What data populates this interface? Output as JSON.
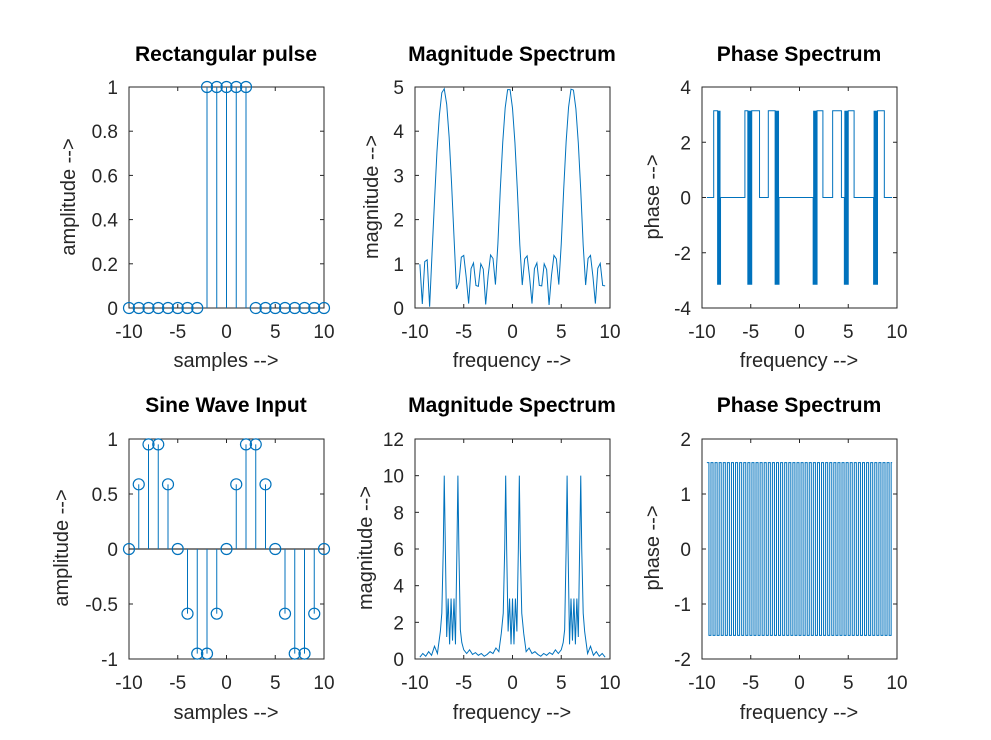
{
  "chart_data": [
    {
      "type": "stem",
      "title": "Rectangular pulse",
      "xlabel": "samples -->",
      "ylabel": "amplitude -->",
      "xlim": [
        -10,
        10
      ],
      "ylim": [
        0,
        1
      ],
      "xticks": [
        -10,
        -5,
        0,
        5,
        10
      ],
      "yticks": [
        0,
        0.2,
        0.4,
        0.6,
        0.8,
        1
      ],
      "x": [
        -10,
        -9,
        -8,
        -7,
        -6,
        -5,
        -4,
        -3,
        -2,
        -1,
        0,
        1,
        2,
        3,
        4,
        5,
        6,
        7,
        8,
        9,
        10
      ],
      "y": [
        0,
        0,
        0,
        0,
        0,
        0,
        0,
        0,
        1,
        1,
        1,
        1,
        1,
        0,
        0,
        0,
        0,
        0,
        0,
        0,
        0
      ],
      "color": "#0072bd",
      "grid": false
    },
    {
      "type": "line",
      "title": "Magnitude Spectrum",
      "xlabel": "frequency -->",
      "ylabel": "magnitude -->",
      "xlim": [
        -10,
        10
      ],
      "ylim": [
        0,
        5
      ],
      "xticks": [
        -10,
        -5,
        0,
        5,
        10
      ],
      "yticks": [
        0,
        1,
        2,
        3,
        4,
        5
      ],
      "x": [
        -9.5,
        -9.25,
        -9,
        -8.75,
        -8.5,
        -8.25,
        -8,
        -7.75,
        -7.5,
        -7.25,
        -7,
        -6.75,
        -6.5,
        -6.25,
        -6,
        -5.75,
        -5.5,
        -5.25,
        -5,
        -4.75,
        -4.5,
        -4.25,
        -4,
        -3.75,
        -3.5,
        -3.25,
        -3,
        -2.75,
        -2.5,
        -2.25,
        -2,
        -1.75,
        -1.5,
        -1.25,
        -1,
        -0.75,
        -0.5,
        -0.25,
        0,
        0.25,
        0.5,
        0.75,
        1,
        1.25,
        1.5,
        1.75,
        2,
        2.25,
        2.5,
        2.75,
        3,
        3.25,
        3.5,
        3.75,
        4,
        4.25,
        4.5,
        4.75,
        5,
        5.25,
        5.5,
        5.75,
        6,
        6.25,
        6.5,
        6.75,
        7,
        7.25,
        7.5,
        7.75,
        8,
        8.25,
        8.5,
        8.75,
        9,
        9.25,
        9.5
      ],
      "y": [
        0.99,
        0.09,
        1.05,
        1.09,
        0.03,
        1.25,
        2.42,
        3.53,
        4.36,
        4.87,
        4.96,
        4.61,
        3.87,
        2.82,
        1.61,
        0.43,
        0.57,
        1.15,
        1.19,
        0.7,
        0.1,
        0.89,
        1.02,
        0.51,
        0.49,
        1.0,
        0.88,
        0.08,
        0.73,
        1.2,
        1.12,
        0.53,
        1.45,
        2.69,
        3.75,
        4.53,
        4.94,
        4.94,
        4.52,
        3.74,
        2.66,
        1.43,
        0.52,
        1.11,
        1.18,
        0.7,
        0.1,
        0.89,
        1.02,
        0.51,
        0.5,
        1.0,
        0.87,
        0.07,
        0.74,
        1.19,
        1.11,
        0.53,
        1.45,
        2.68,
        3.76,
        4.54,
        4.95,
        4.93,
        4.51,
        3.73,
        2.66,
        1.42,
        0.52,
        1.12,
        1.19,
        0.71,
        0.1,
        0.9,
        1.01,
        0.51,
        0.5
      ],
      "color": "#0072bd",
      "grid": false
    },
    {
      "type": "line",
      "title": "Phase Spectrum",
      "xlabel": "frequency -->",
      "ylabel": "phase -->",
      "xlim": [
        -10,
        10
      ],
      "ylim": [
        -4,
        4
      ],
      "xticks": [
        -10,
        -5,
        0,
        5,
        10
      ],
      "yticks": [
        -4,
        -2,
        0,
        2,
        4
      ],
      "segments": [
        {
          "from": -9.5,
          "to": -8.8,
          "y": 0
        },
        {
          "from": -8.8,
          "to": -8.4,
          "y": 3.1416
        },
        {
          "from": -8.4,
          "to": -8.1,
          "y": -3.1416,
          "band": true
        },
        {
          "from": -8.1,
          "to": -5.6,
          "y": 0
        },
        {
          "from": -5.6,
          "to": -5.3,
          "y": 3.1416
        },
        {
          "from": -5.3,
          "to": -4.9,
          "y": -3.1416,
          "band": true
        },
        {
          "from": -4.9,
          "to": -4.1,
          "y": 3.1416
        },
        {
          "from": -4.1,
          "to": -3.2,
          "y": 0
        },
        {
          "from": -3.2,
          "to": -2.5,
          "y": 3.1416
        },
        {
          "from": -2.5,
          "to": -2.1,
          "y": -3.1416,
          "band": true
        },
        {
          "from": -2.1,
          "to": 1.4,
          "y": 0
        },
        {
          "from": 1.4,
          "to": 1.8,
          "y": -3.1416,
          "band": true
        },
        {
          "from": 1.8,
          "to": 2.4,
          "y": 3.1416
        },
        {
          "from": 2.4,
          "to": 3.4,
          "y": 0
        },
        {
          "from": 3.4,
          "to": 4.3,
          "y": 3.1416
        },
        {
          "from": 4.3,
          "to": 4.6,
          "y": 0
        },
        {
          "from": 4.6,
          "to": 5.0,
          "y": -3.1416,
          "band": true
        },
        {
          "from": 5.0,
          "to": 5.6,
          "y": 3.1416
        },
        {
          "from": 5.6,
          "to": 7.6,
          "y": 0
        },
        {
          "from": 7.6,
          "to": 8.0,
          "y": -3.1416,
          "band": true
        },
        {
          "from": 8.0,
          "to": 8.7,
          "y": 3.1416
        },
        {
          "from": 8.7,
          "to": 9.5,
          "y": 0
        }
      ],
      "color": "#0072bd",
      "grid": false
    },
    {
      "type": "stem",
      "title": "Sine Wave Input",
      "xlabel": "samples -->",
      "ylabel": "amplitude -->",
      "xlim": [
        -10,
        10
      ],
      "ylim": [
        -1,
        1
      ],
      "xticks": [
        -10,
        -5,
        0,
        5,
        10
      ],
      "yticks": [
        -1,
        -0.5,
        0,
        0.5,
        1
      ],
      "x": [
        -10,
        -9,
        -8,
        -7,
        -6,
        -5,
        -4,
        -3,
        -2,
        -1,
        0,
        1,
        2,
        3,
        4,
        5,
        6,
        7,
        8,
        9,
        10
      ],
      "y": [
        0,
        0.588,
        0.951,
        0.951,
        0.588,
        0,
        -0.588,
        -0.951,
        -0.951,
        -0.588,
        0,
        0.588,
        0.951,
        0.951,
        0.588,
        0,
        -0.588,
        -0.951,
        -0.951,
        -0.588,
        0
      ],
      "color": "#0072bd",
      "grid": false
    },
    {
      "type": "line",
      "title": "Magnitude Spectrum",
      "xlabel": "frequency -->",
      "ylabel": "magnitude -->",
      "xlim": [
        -10,
        10
      ],
      "ylim": [
        0,
        12
      ],
      "xticks": [
        -10,
        -5,
        0,
        5,
        10
      ],
      "yticks": [
        0,
        2,
        4,
        6,
        8,
        10,
        12
      ],
      "peaks": [
        -7.0,
        -5.6,
        -0.7,
        0.7,
        5.6,
        7.0
      ],
      "peak_value": 10,
      "x": [
        -9.5,
        -9.2,
        -8.9,
        -8.6,
        -8.3,
        -8.0,
        -7.7,
        -7.4,
        -7.25,
        -7.1,
        -7.0,
        -6.9,
        -6.75,
        -6.6,
        -6.45,
        -6.3,
        -6.15,
        -6.0,
        -5.85,
        -5.7,
        -5.6,
        -5.5,
        -5.35,
        -5.2,
        -5.0,
        -4.7,
        -4.4,
        -4.1,
        -3.8,
        -3.5,
        -3.2,
        -2.9,
        -2.6,
        -2.3,
        -2.0,
        -1.7,
        -1.4,
        -1.15,
        -0.95,
        -0.8,
        -0.7,
        -0.6,
        -0.45,
        -0.3,
        -0.15,
        0,
        0.15,
        0.3,
        0.45,
        0.6,
        0.7,
        0.8,
        0.95,
        1.15,
        1.4,
        1.7,
        2.0,
        2.3,
        2.6,
        2.9,
        3.2,
        3.5,
        3.8,
        4.1,
        4.4,
        4.7,
        5.0,
        5.2,
        5.35,
        5.5,
        5.6,
        5.7,
        5.85,
        6.0,
        6.15,
        6.3,
        6.45,
        6.6,
        6.75,
        6.9,
        7.0,
        7.1,
        7.25,
        7.4,
        7.7,
        8.0,
        8.3,
        8.6,
        8.9,
        9.2,
        9.5
      ],
      "y": [
        0.1,
        0.3,
        0.15,
        0.4,
        0.2,
        0.7,
        0.3,
        1.5,
        2.5,
        6.0,
        10.0,
        6.5,
        1.2,
        3.3,
        0.8,
        3.3,
        1.0,
        3.3,
        0.8,
        6.0,
        10.0,
        6.0,
        1.6,
        0.9,
        0.5,
        0.3,
        0.5,
        0.25,
        0.35,
        0.2,
        0.3,
        0.15,
        0.25,
        0.4,
        0.3,
        0.6,
        0.4,
        1.4,
        2.5,
        6.0,
        10.0,
        6.0,
        1.5,
        3.3,
        0.8,
        3.3,
        0.8,
        3.3,
        1.5,
        6.0,
        10.0,
        6.0,
        2.5,
        1.4,
        0.4,
        0.6,
        0.3,
        0.4,
        0.25,
        0.15,
        0.3,
        0.2,
        0.35,
        0.25,
        0.5,
        0.3,
        0.5,
        0.9,
        1.6,
        6.0,
        10.0,
        6.0,
        0.8,
        3.3,
        1.0,
        3.3,
        0.8,
        3.3,
        1.2,
        6.5,
        10.0,
        6.0,
        2.5,
        1.5,
        0.3,
        0.7,
        0.2,
        0.4,
        0.15,
        0.3,
        0.1
      ],
      "color": "#0072bd",
      "grid": false
    },
    {
      "type": "line",
      "title": "Phase Spectrum",
      "xlabel": "frequency -->",
      "ylabel": "phase -->",
      "xlim": [
        -10,
        10
      ],
      "ylim": [
        -2,
        2
      ],
      "xticks": [
        -10,
        -5,
        0,
        5,
        10
      ],
      "yticks": [
        -2,
        -1,
        0,
        1,
        2
      ],
      "square_wave": {
        "from": -9.5,
        "to": 9.5,
        "high": 1.5708,
        "low": -1.5708,
        "period": 0.42
      },
      "color": "#0072bd",
      "grid": false
    }
  ]
}
